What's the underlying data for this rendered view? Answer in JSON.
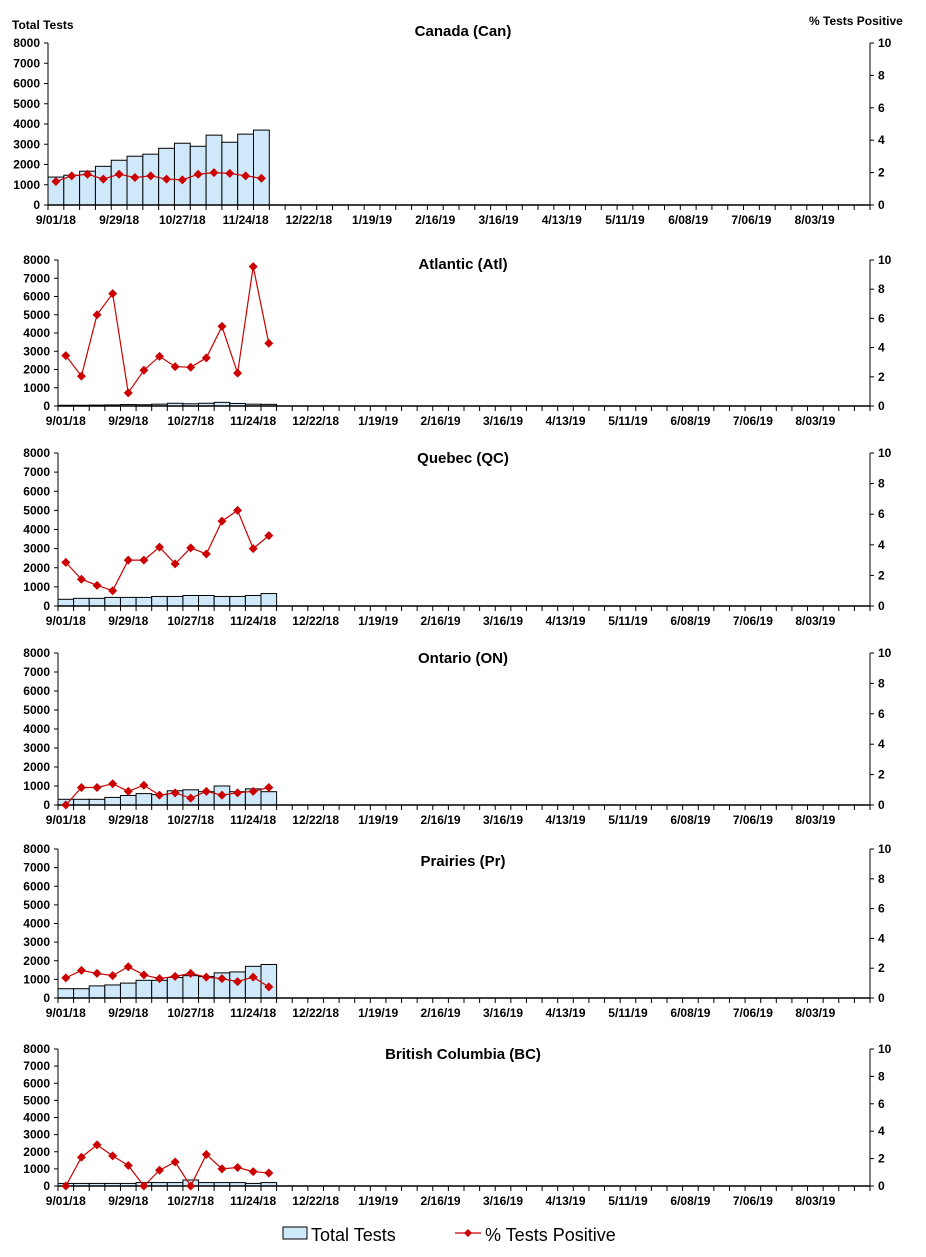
{
  "colors": {
    "bar_fill": "#cfe9fb",
    "bar_stroke": "#000000",
    "line": "#cc0000"
  },
  "left_axis_label": "Total Tests",
  "right_axis_label": "% Tests Positive",
  "legend": {
    "bars": "Total Tests",
    "line": "% Tests Positive",
    "placement": "bottom"
  },
  "chart_data": [
    {
      "type": "bar+line",
      "title": "Canada (Can)",
      "x_tick_labels": [
        "9/01/18",
        "9/29/18",
        "10/27/18",
        "11/24/18",
        "12/22/18",
        "1/19/19",
        "2/16/19",
        "3/16/19",
        "4/13/19",
        "5/11/19",
        "6/08/19",
        "7/06/19",
        "8/03/19"
      ],
      "weeks": 52,
      "ylim": [
        0,
        8000
      ],
      "y2lim": [
        0,
        10
      ],
      "series": [
        {
          "name": "Total Tests",
          "values": [
            1380,
            1470,
            1670,
            1910,
            2210,
            2410,
            2510,
            2800,
            3050,
            2900,
            3450,
            3100,
            3500,
            3700
          ]
        },
        {
          "name": "% Tests Positive",
          "values": [
            1.45,
            1.8,
            1.9,
            1.6,
            1.9,
            1.7,
            1.8,
            1.6,
            1.55,
            1.9,
            2.0,
            1.95,
            1.8,
            1.65
          ]
        }
      ]
    },
    {
      "type": "bar+line",
      "title": "Atlantic (Atl)",
      "weeks": 52,
      "ylim": [
        0,
        8000
      ],
      "y2lim": [
        0,
        10
      ],
      "series": [
        {
          "name": "Total Tests",
          "values": [
            40,
            40,
            50,
            60,
            80,
            70,
            100,
            150,
            120,
            150,
            200,
            140,
            100,
            90
          ]
        },
        {
          "name": "% Tests Positive",
          "values": [
            3.45,
            2.05,
            6.25,
            7.7,
            0.9,
            2.45,
            3.4,
            2.7,
            2.65,
            3.3,
            5.45,
            2.25,
            9.55,
            4.3
          ]
        }
      ]
    },
    {
      "type": "bar+line",
      "title": "Quebec (QC)",
      "weeks": 52,
      "ylim": [
        0,
        8000
      ],
      "y2lim": [
        0,
        10
      ],
      "series": [
        {
          "name": "Total Tests",
          "values": [
            350,
            400,
            400,
            450,
            450,
            450,
            500,
            500,
            550,
            550,
            500,
            500,
            550,
            650
          ]
        },
        {
          "name": "% Tests Positive",
          "values": [
            2.85,
            1.75,
            1.35,
            1.0,
            3.0,
            3.0,
            3.85,
            2.75,
            3.8,
            3.4,
            5.55,
            6.25,
            3.75,
            4.6
          ]
        }
      ]
    },
    {
      "type": "bar+line",
      "title": "Ontario (ON)",
      "weeks": 52,
      "ylim": [
        0,
        8000
      ],
      "y2lim": [
        0,
        10
      ],
      "series": [
        {
          "name": "Total Tests",
          "values": [
            300,
            300,
            300,
            400,
            500,
            600,
            550,
            750,
            800,
            700,
            1000,
            700,
            850,
            700
          ]
        },
        {
          "name": "% Tests Positive",
          "values": [
            0,
            1.15,
            1.15,
            1.4,
            0.9,
            1.3,
            0.65,
            0.8,
            0.45,
            0.9,
            0.65,
            0.8,
            0.9,
            1.15
          ]
        }
      ]
    },
    {
      "type": "bar+line",
      "title": "Prairies (Pr)",
      "weeks": 52,
      "ylim": [
        0,
        8000
      ],
      "y2lim": [
        0,
        10
      ],
      "series": [
        {
          "name": "Total Tests",
          "values": [
            500,
            500,
            650,
            700,
            800,
            950,
            950,
            1100,
            1200,
            1150,
            1350,
            1400,
            1700,
            1800
          ]
        },
        {
          "name": "% Tests Positive",
          "values": [
            1.35,
            1.85,
            1.65,
            1.5,
            2.1,
            1.55,
            1.3,
            1.45,
            1.65,
            1.4,
            1.3,
            1.1,
            1.4,
            0.75
          ]
        }
      ]
    },
    {
      "type": "bar+line",
      "title": "British Columbia (BC)",
      "weeks": 52,
      "ylim": [
        0,
        8000
      ],
      "y2lim": [
        0,
        10
      ],
      "series": [
        {
          "name": "Total Tests",
          "values": [
            150,
            150,
            150,
            150,
            150,
            200,
            200,
            200,
            350,
            200,
            200,
            200,
            150,
            200
          ]
        },
        {
          "name": "% Tests Positive",
          "values": [
            0,
            2.1,
            3.0,
            2.2,
            1.5,
            0,
            1.15,
            1.75,
            0,
            2.3,
            1.25,
            1.35,
            1.05,
            0.95
          ]
        }
      ]
    }
  ]
}
